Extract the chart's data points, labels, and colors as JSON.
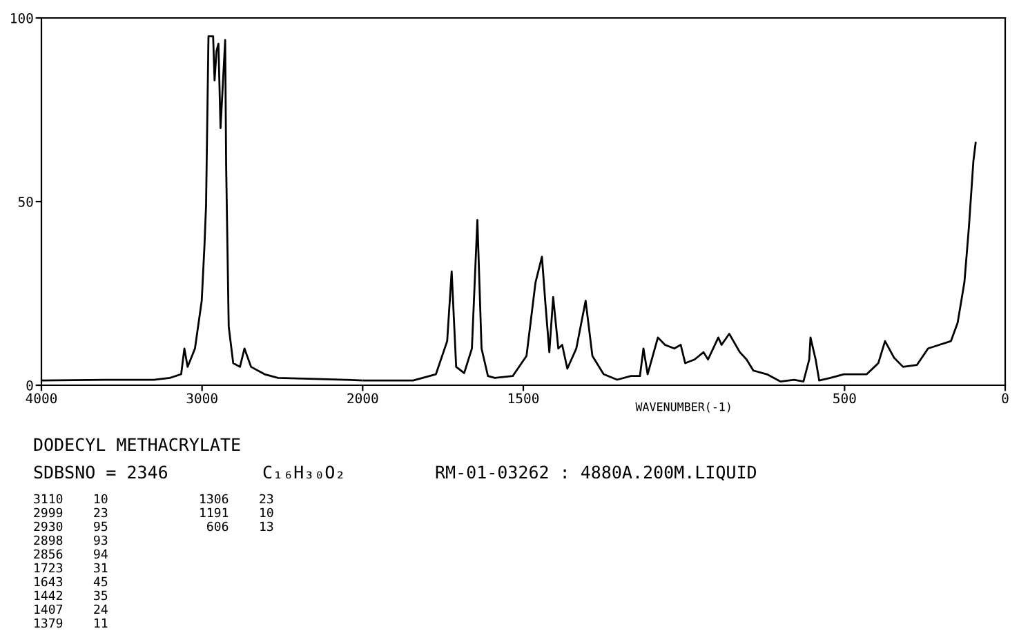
{
  "chart_data": [
    {
      "type": "line",
      "title": "DODECYL METHACRYLATE",
      "xlim": [
        4000,
        2000
      ],
      "ylim": [
        0,
        100
      ],
      "xticks": [
        4000,
        3000
      ],
      "yticks": [
        0,
        50,
        100
      ],
      "grid": false,
      "x": [
        4000,
        3600,
        3300,
        3200,
        3130,
        3110,
        3090,
        3044,
        3002,
        2985,
        2975,
        2960,
        2931,
        2922,
        2910,
        2898,
        2885,
        2856,
        2850,
        2834,
        2806,
        2764,
        2736,
        2695,
        2611,
        2527,
        2109,
        2000
      ],
      "series": [
        {
          "color": "#000000",
          "values": [
            1.3,
            1.5,
            1.5,
            2,
            3,
            10,
            5,
            10,
            23,
            38,
            49,
            95,
            95,
            83,
            91,
            93,
            70,
            94,
            60,
            16,
            6,
            5,
            10,
            5,
            3,
            2,
            1.5,
            1.3
          ]
        }
      ],
      "annotations": [
        "SDBSNO = 2346",
        "C₁₆H₃₀O₂",
        "RM-01-03262 : 4880A.200M.LIQUID",
        "3110    10",
        "2999    23",
        "2930    95",
        "2898    93",
        "2856    94",
        "1723    31",
        "1643    45",
        "1442    35",
        "1407    24",
        "1379    11",
        "1306    23",
        "1191    10",
        " 606    13"
      ]
    },
    {
      "type": "line",
      "xlabel": "WAVENUMBER(-1)",
      "xlim": [
        2000,
        0
      ],
      "ylim": [
        0,
        100
      ],
      "xticks": [
        2000,
        1500,
        500,
        0
      ],
      "tick_labels": "x",
      "grid": false,
      "x": [
        2000,
        1843,
        1772,
        1737,
        1723,
        1709,
        1684,
        1660,
        1643,
        1630,
        1610,
        1589,
        1533,
        1490,
        1462,
        1442,
        1431,
        1419,
        1407,
        1391,
        1379,
        1363,
        1335,
        1306,
        1285,
        1250,
        1208,
        1165,
        1137,
        1126,
        1113,
        1081,
        1059,
        1030,
        1010,
        996,
        967,
        939,
        925,
        893,
        883,
        859,
        826,
        805,
        784,
        742,
        699,
        657,
        628,
        610,
        606,
        590,
        579,
        544,
        502,
        431,
        395,
        374,
        346,
        318,
        275,
        240,
        205,
        169,
        148,
        127,
        113,
        99,
        92
      ],
      "series": [
        {
          "color": "#000000",
          "values": [
            1.3,
            1.3,
            3,
            12,
            31,
            5,
            3.3,
            10,
            45,
            10,
            2.5,
            2,
            2.5,
            8,
            28,
            35,
            22,
            9,
            24,
            10,
            11,
            4.5,
            10,
            23,
            8,
            3,
            1.5,
            2.5,
            2.5,
            10,
            3,
            13,
            11,
            10,
            11,
            6,
            7,
            9,
            7,
            13,
            11,
            14,
            9,
            7,
            4,
            3,
            1,
            1.5,
            1,
            7,
            13,
            7,
            1.3,
            2,
            3,
            3,
            6,
            12,
            7.5,
            5,
            5.5,
            10,
            11,
            12,
            17,
            28,
            43,
            61,
            66
          ]
        }
      ]
    }
  ]
}
